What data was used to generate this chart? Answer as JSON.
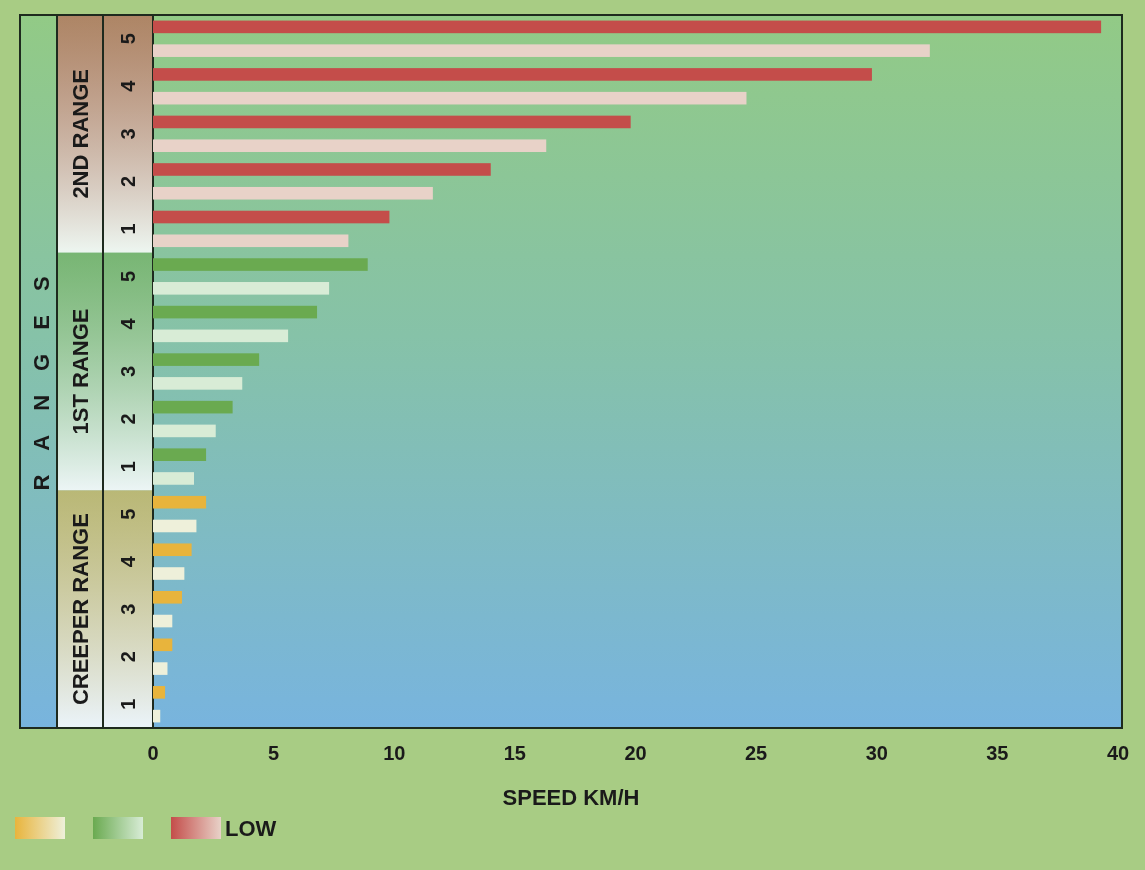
{
  "chart_data": {
    "type": "bar",
    "orientation": "horizontal",
    "categories": [
      "5",
      "4",
      "3",
      "2",
      "1",
      "5",
      "4",
      "3",
      "2",
      "1",
      "5",
      "4",
      "3",
      "2",
      "1"
    ],
    "series": [
      {
        "colors": [
          "#c44d4a",
          "#c44d4a",
          "#c44d4a",
          "#c44d4a",
          "#c44d4a",
          "#6aaa50",
          "#6aaa50",
          "#6aaa50",
          "#6aaa50",
          "#6aaa50",
          "#e8b43c",
          "#e8b43c",
          "#e8b43c",
          "#e8b43c",
          "#e8b43c"
        ],
        "values": [
          39.3,
          29.8,
          19.8,
          14.0,
          9.8,
          8.9,
          6.8,
          4.4,
          3.3,
          2.2,
          2.2,
          1.6,
          1.2,
          0.8,
          0.5
        ]
      },
      {
        "name": "LOW",
        "colors": [
          "#e8d2c8",
          "#e8d2c8",
          "#e8d2c8",
          "#e8d2c8",
          "#e8d2c8",
          "#d8ecd6",
          "#d8ecd6",
          "#d8ecd6",
          "#d8ecd6",
          "#d8ecd6",
          "#eef0da",
          "#eef0da",
          "#eef0da",
          "#eef0da",
          "#eef0da"
        ],
        "values": [
          32.2,
          24.6,
          16.3,
          11.6,
          8.1,
          7.3,
          5.6,
          3.7,
          2.6,
          1.7,
          1.8,
          1.3,
          0.8,
          0.6,
          0.3
        ]
      }
    ],
    "xlabel": "SPEED KM/H",
    "ylabel": "RANGES",
    "annotations": [
      "2ND RANGE",
      "1ST RANGE",
      "CREEPER RANGE"
    ],
    "xlim": [
      0,
      40
    ],
    "xticks": [
      0,
      5,
      10,
      15,
      20,
      25,
      30,
      35,
      40
    ],
    "legend": "bottom left"
  }
}
